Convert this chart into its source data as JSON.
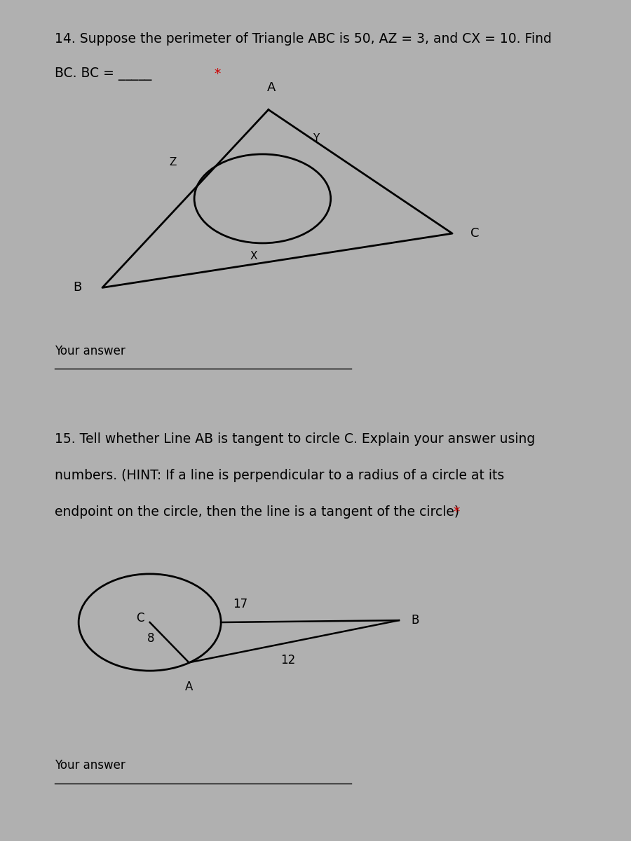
{
  "bg_color": "#b0b0b0",
  "panel1_bg": "#d4d4d4",
  "panel2_bg": "#d4d4d4",
  "q14_text_line1": "14. Suppose the perimeter of Triangle ABC is 50, AZ = 3, and CX = 10. Find",
  "q14_text_line2": "BC. BC = _____",
  "your_answer": "Your answer",
  "q15_text_line1": "15. Tell whether Line AB is tangent to circle C. Explain your answer using",
  "q15_text_line2": "numbers. (HINT: If a line is perpendicular to a radius of a circle at its",
  "q15_text_line3": "endpoint on the circle, then the line is a tangent of the circle)",
  "label_A1": "A",
  "label_B1": "B",
  "label_C1": "C",
  "label_Z": "Z",
  "label_Y": "Y",
  "label_X": "X",
  "label_C2": "C",
  "label_B2": "B",
  "label_A2": "A",
  "num_17": "17",
  "num_8": "8",
  "num_12": "12",
  "line_color": "#000000",
  "text_color": "#000000",
  "asterisk_color": "#cc0000"
}
